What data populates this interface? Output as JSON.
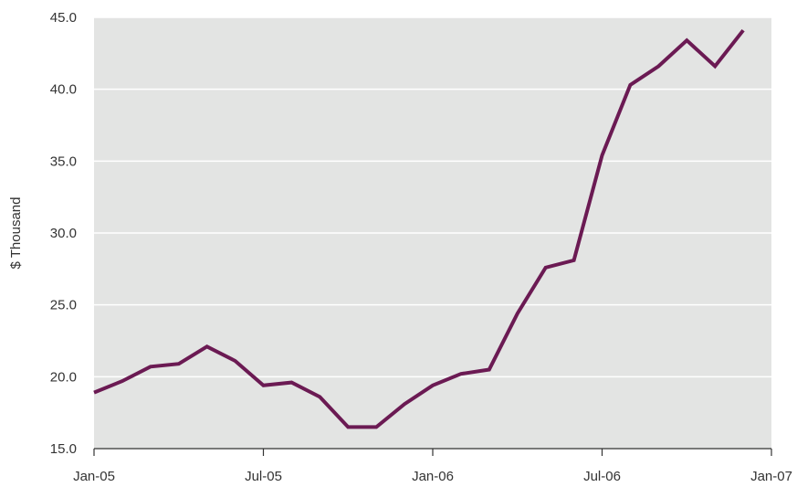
{
  "chart_data": {
    "type": "line",
    "title": "",
    "xlabel": "",
    "ylabel": "$ Thousand",
    "ylim": [
      15,
      45
    ],
    "y_ticks": [
      "15.0",
      "20.0",
      "25.0",
      "30.0",
      "35.0",
      "40.0",
      "45.0"
    ],
    "x_ticks": [
      "Jan-05",
      "Jul-05",
      "Jan-06",
      "Jul-06",
      "Jan-07"
    ],
    "grid": "horizontal",
    "background": "#e3e4e3",
    "series": [
      {
        "color": "#6b1a53",
        "x": [
          "Jan-05",
          "Feb-05",
          "Mar-05",
          "Apr-05",
          "May-05",
          "Jun-05",
          "Jul-05",
          "Aug-05",
          "Sep-05",
          "Oct-05",
          "Nov-05",
          "Dec-05",
          "Jan-06",
          "Feb-06",
          "Mar-06",
          "Apr-06",
          "May-06",
          "Jun-06",
          "Jul-06",
          "Aug-06",
          "Sep-06",
          "Oct-06",
          "Nov-06",
          "Dec-06"
        ],
        "values": [
          18.9,
          19.7,
          20.7,
          20.9,
          22.1,
          21.1,
          19.4,
          19.6,
          18.6,
          16.5,
          16.5,
          18.1,
          19.4,
          20.2,
          20.5,
          24.4,
          27.6,
          28.1,
          35.4,
          40.3,
          41.6,
          43.4,
          41.6,
          44.1
        ]
      }
    ]
  }
}
